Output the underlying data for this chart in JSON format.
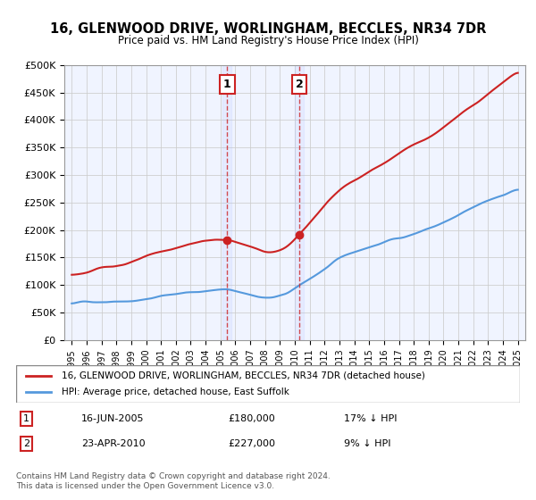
{
  "title": "16, GLENWOOD DRIVE, WORLINGHAM, BECCLES, NR34 7DR",
  "subtitle": "Price paid vs. HM Land Registry's House Price Index (HPI)",
  "xlabel": "",
  "ylabel": "",
  "background_color": "#ffffff",
  "plot_background": "#f0f4ff",
  "grid_color": "#cccccc",
  "sale1_date": 2005.46,
  "sale1_price": 180000,
  "sale1_label": "1",
  "sale2_date": 2010.31,
  "sale2_price": 227000,
  "sale2_label": "2",
  "hpi_line_color": "#5599dd",
  "sale_line_color": "#cc2222",
  "annotation_box_color": "#cc2222",
  "legend_sale_label": "16, GLENWOOD DRIVE, WORLINGHAM, BECCLES, NR34 7DR (detached house)",
  "legend_hpi_label": "HPI: Average price, detached house, East Suffolk",
  "table_row1": [
    "1",
    "16-JUN-2005",
    "£180,000",
    "17% ↓ HPI"
  ],
  "table_row2": [
    "2",
    "23-APR-2010",
    "£227,000",
    "9% ↓ HPI"
  ],
  "footer": "Contains HM Land Registry data © Crown copyright and database right 2024.\nThis data is licensed under the Open Government Licence v3.0.",
  "ylim_min": 0,
  "ylim_max": 500000,
  "xlim_min": 1994.5,
  "xlim_max": 2025.5
}
